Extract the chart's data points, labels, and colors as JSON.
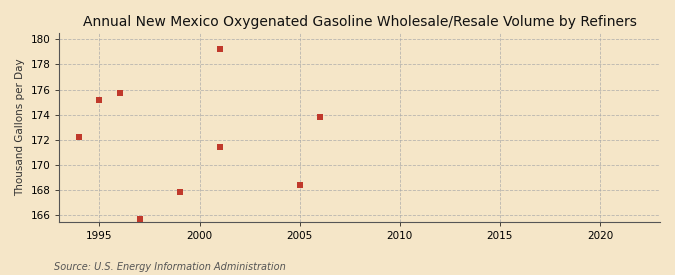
{
  "title": "Annual New Mexico Oxygenated Gasoline Wholesale/Resale Volume by Refiners",
  "ylabel": "Thousand Gallons per Day",
  "source": "Source: U.S. Energy Information Administration",
  "x_data": [
    1994,
    1995,
    1996,
    1997,
    1999,
    2001,
    2001,
    2005,
    2006
  ],
  "y_data": [
    172.2,
    175.2,
    175.7,
    165.7,
    167.9,
    179.2,
    171.4,
    168.4,
    173.8
  ],
  "xlim": [
    1993,
    2023
  ],
  "ylim": [
    165.5,
    180.5
  ],
  "yticks": [
    166,
    168,
    170,
    172,
    174,
    176,
    178,
    180
  ],
  "xticks": [
    1995,
    2000,
    2005,
    2010,
    2015,
    2020
  ],
  "marker_color": "#c0392b",
  "marker": "s",
  "marker_size": 5,
  "bg_color": "#f5e6c8",
  "grid_color": "#aaaaaa",
  "title_fontsize": 10,
  "label_fontsize": 7.5,
  "tick_fontsize": 7.5,
  "source_fontsize": 7
}
